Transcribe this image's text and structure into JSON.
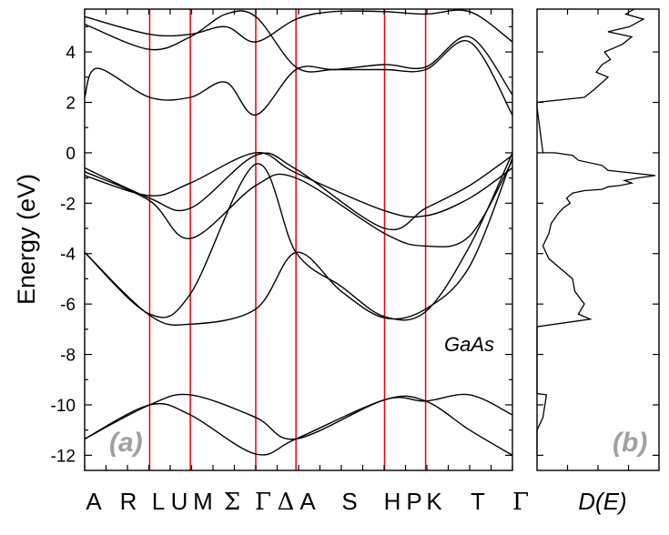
{
  "chart_data": [
    {
      "type": "line",
      "panel_label": "(a)",
      "material": "GaAs",
      "ylabel": "Energy (eV)",
      "ylim": [
        -12.6,
        5.7
      ],
      "yticks": [
        "4",
        "2",
        "0",
        "-2",
        "-4",
        "-6",
        "-8",
        "-10",
        "-12"
      ],
      "ytick_values": [
        4,
        2,
        0,
        -2,
        -4,
        -6,
        -8,
        -10,
        -12
      ],
      "kpath_labels": [
        "A",
        "R",
        "L",
        "U",
        "M",
        "Σ",
        "Γ",
        "Δ",
        "A",
        "S",
        "H",
        "P",
        "K",
        "T",
        "Γ"
      ],
      "high_symmetry_lines": [
        "L",
        "M",
        "Γ",
        "A",
        "H",
        "K"
      ],
      "high_symmetry_color": "#e8000b",
      "k_range": [
        0,
        1
      ],
      "kline_positions": [
        0.152,
        0.247,
        0.4,
        0.494,
        0.701,
        0.797
      ],
      "bands": [
        {
          "name": "deep-1",
          "x": [
            0,
            0.152,
            0.247,
            0.4,
            0.494,
            0.701,
            0.797,
            0.9,
            1.0
          ],
          "y": [
            -11.35,
            -10.0,
            -9.6,
            -10.5,
            -11.35,
            -9.8,
            -9.85,
            -9.6,
            -10.4
          ]
        },
        {
          "name": "deep-2",
          "x": [
            0,
            0.152,
            0.247,
            0.4,
            0.494,
            0.701,
            0.797,
            0.9,
            1.0
          ],
          "y": [
            -11.35,
            -10.0,
            -10.4,
            -11.95,
            -11.35,
            -9.8,
            -9.85,
            -11.0,
            -12.0
          ]
        },
        {
          "name": "valence-1",
          "x": [
            0,
            0.152,
            0.247,
            0.4,
            0.494,
            0.6,
            0.701,
            0.797,
            0.9,
            1.0
          ],
          "y": [
            -3.95,
            -6.4,
            -5.6,
            -0.45,
            -3.95,
            -5.3,
            -6.5,
            -6.3,
            -3.7,
            0.0
          ]
        },
        {
          "name": "valence-2",
          "x": [
            0,
            0.152,
            0.247,
            0.4,
            0.494,
            0.6,
            0.701,
            0.797,
            0.9,
            1.0
          ],
          "y": [
            -3.95,
            -6.45,
            -6.8,
            -6.2,
            -3.95,
            -5.5,
            -6.55,
            -6.2,
            -4.5,
            -0.2
          ]
        },
        {
          "name": "valence-3",
          "x": [
            0,
            0.152,
            0.247,
            0.4,
            0.494,
            0.701,
            0.797,
            0.9,
            1.0
          ],
          "y": [
            -0.6,
            -1.8,
            -2.2,
            -0.1,
            -0.65,
            -3.0,
            -2.2,
            -1.3,
            -0.1
          ]
        },
        {
          "name": "valence-4",
          "x": [
            0,
            0.152,
            0.247,
            0.4,
            0.494,
            0.701,
            0.797,
            0.9,
            1.0
          ],
          "y": [
            -0.75,
            -1.9,
            -3.4,
            -1.3,
            -1.0,
            -3.2,
            -3.7,
            -3.3,
            -0.3
          ]
        },
        {
          "name": "valence-5",
          "x": [
            0,
            0.152,
            0.247,
            0.4,
            0.494,
            0.701,
            0.797,
            0.9,
            1.0
          ],
          "y": [
            -0.9,
            -1.7,
            -1.2,
            0.0,
            -0.8,
            -2.3,
            -2.5,
            -1.8,
            -0.6
          ]
        },
        {
          "name": "conduction-1",
          "x": [
            0,
            0.03,
            0.152,
            0.247,
            0.33,
            0.4,
            0.494,
            0.58,
            0.701,
            0.797,
            0.9,
            1.0
          ],
          "y": [
            2.2,
            3.35,
            2.2,
            2.2,
            2.8,
            1.5,
            3.3,
            3.3,
            3.3,
            3.3,
            4.4,
            1.5
          ]
        },
        {
          "name": "conduction-2",
          "x": [
            0,
            0.152,
            0.247,
            0.33,
            0.4,
            0.494,
            0.58,
            0.701,
            0.797,
            0.9,
            1.0
          ],
          "y": [
            5.1,
            4.1,
            4.6,
            5.5,
            5.4,
            3.4,
            3.3,
            3.5,
            3.4,
            4.6,
            2.3
          ]
        },
        {
          "name": "conduction-3",
          "x": [
            0,
            0.152,
            0.247,
            0.33,
            0.4,
            0.494,
            0.58,
            0.701,
            0.797,
            0.9,
            1.0
          ],
          "y": [
            5.4,
            4.7,
            4.7,
            5.0,
            4.4,
            5.3,
            5.6,
            5.6,
            5.5,
            5.6,
            4.4
          ]
        }
      ]
    },
    {
      "type": "line",
      "panel_label": "(b)",
      "xlabel": "D(E)",
      "ylim": [
        -12.6,
        5.7
      ],
      "series": [
        {
          "x": [
            0.0,
            0.0,
            0.05,
            0.08,
            0.0,
            0.0,
            0.0,
            0.45,
            0.35,
            0.4,
            0.32,
            0.3,
            0.1,
            0.05,
            0.1,
            0.12,
            0.18,
            0.22,
            0.28,
            0.25,
            0.3,
            0.4,
            0.55,
            0.6,
            0.7,
            0.8,
            0.74,
            0.85,
            1.0,
            0.6,
            0.55,
            0.35,
            0.3,
            0.15,
            0.05,
            0.0,
            0.0,
            0.4,
            0.48,
            0.6,
            0.5,
            0.55,
            0.62,
            0.57,
            0.72,
            0.8,
            0.6,
            0.78,
            0.9,
            0.75,
            0.82
          ],
          "y": [
            -12.0,
            -11.0,
            -10.5,
            -9.6,
            -9.55,
            -8.0,
            -6.9,
            -6.6,
            -6.4,
            -6.0,
            -5.5,
            -5.0,
            -4.2,
            -3.7,
            -3.2,
            -2.8,
            -2.4,
            -2.2,
            -2.0,
            -1.8,
            -1.6,
            -1.5,
            -1.45,
            -1.35,
            -1.3,
            -1.2,
            -1.1,
            -1.0,
            -0.9,
            -0.7,
            -0.5,
            -0.3,
            -0.1,
            0.0,
            0.0,
            1.8,
            2.0,
            2.2,
            2.5,
            3.0,
            3.2,
            3.5,
            3.7,
            4.0,
            4.3,
            4.6,
            4.8,
            5.0,
            5.3,
            5.5,
            5.7
          ]
        }
      ]
    }
  ]
}
